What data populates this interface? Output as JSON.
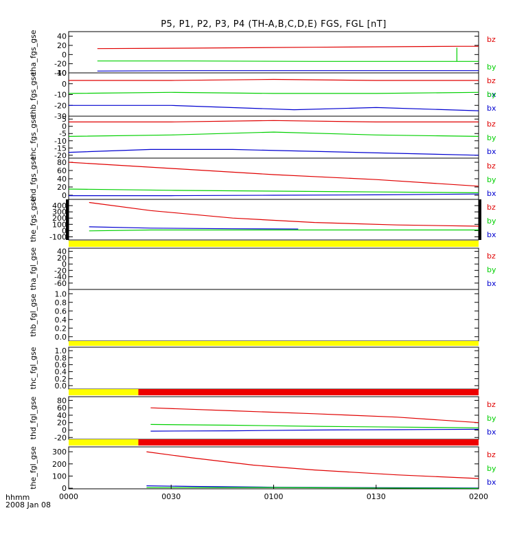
{
  "title": "P5, P1, P2, P3, P4 (TH-A,B,C,D,E) FGS, FGL [nT]",
  "footer": {
    "xunit": "hhmm",
    "date": "2008 Jan 08"
  },
  "colors": {
    "bz": "#e00000",
    "by": "#00d000",
    "bx": "#0000d0",
    "bar_yellow": "#ffff00",
    "bar_red": "#ee0000",
    "spike": "#00d000"
  },
  "chart_data": [
    {
      "type": "line",
      "title": "P5, P1, P2, P3, P4 (TH-A,B,C,D,E) FGS, FGL [nT]",
      "xlabel": "hhmm",
      "x_ticks": [
        "0000",
        "0030",
        "0100",
        "0130",
        "0200"
      ],
      "xlim": [
        "00:00",
        "02:00"
      ],
      "panels": [
        {
          "name": "tha_fgs_gse",
          "ylim": [
            -40,
            50
          ],
          "yticks": [
            "40",
            "20",
            "0",
            "-20",
            "-40"
          ],
          "legend": [
            "bz",
            "by",
            "bx"
          ],
          "series": [
            {
              "name": "bz",
              "t": [
                0.07,
                0.3,
                0.6,
                0.95,
                1
              ],
              "v": [
                13,
                14,
                16,
                18,
                18
              ]
            },
            {
              "name": "by",
              "t": [
                0.07,
                0.3,
                0.6,
                0.95,
                1
              ],
              "v": [
                -14,
                -14,
                -15,
                -15,
                -15
              ]
            },
            {
              "name": "bx",
              "t": [
                0.07,
                0.3,
                0.6,
                0.95,
                1
              ],
              "v": [
                -36,
                -35,
                -35,
                -35,
                -35
              ]
            }
          ],
          "spike": {
            "t": 0.947,
            "from": -15,
            "to": 15
          }
        },
        {
          "name": "thb_fgs_gse",
          "ylim": [
            -30,
            10
          ],
          "yticks": [
            "10",
            "0",
            "-10",
            "-20",
            "-30"
          ],
          "legend": [
            "bz",
            "by",
            "bx"
          ],
          "series": [
            {
              "name": "bz",
              "t": [
                0,
                0.25,
                0.5,
                0.75,
                1
              ],
              "v": [
                3,
                3,
                4,
                3,
                3
              ]
            },
            {
              "name": "by",
              "t": [
                0,
                0.25,
                0.5,
                0.75,
                1
              ],
              "v": [
                -9,
                -8,
                -9,
                -9,
                -8
              ]
            },
            {
              "name": "bx",
              "t": [
                0,
                0.25,
                0.55,
                0.75,
                1
              ],
              "v": [
                -20,
                -20,
                -24,
                -22,
                -25
              ]
            }
          ]
        },
        {
          "name": "thc_fgs_gse",
          "ylim": [
            -22,
            7
          ],
          "yticks": [
            "5",
            "0",
            "-5",
            "-10",
            "-15",
            "-20"
          ],
          "legend": [
            "bz",
            "by",
            "bx"
          ],
          "series": [
            {
              "name": "bz",
              "t": [
                0,
                0.25,
                0.5,
                0.75,
                1
              ],
              "v": [
                3,
                3,
                4,
                3,
                3
              ]
            },
            {
              "name": "by",
              "t": [
                0,
                0.25,
                0.5,
                0.75,
                1
              ],
              "v": [
                -7,
                -6,
                -4,
                -6,
                -7
              ]
            },
            {
              "name": "bx",
              "t": [
                0,
                0.2,
                0.4,
                0.7,
                1
              ],
              "v": [
                -18,
                -16,
                -16,
                -18,
                -20
              ]
            }
          ]
        },
        {
          "name": "thd_fgs_gse",
          "ylim": [
            -10,
            90
          ],
          "yticks": [
            "80",
            "60",
            "40",
            "20",
            "0"
          ],
          "legend": [
            "bz",
            "by",
            "bx"
          ],
          "series": [
            {
              "name": "bz",
              "t": [
                0,
                0.25,
                0.5,
                0.75,
                1
              ],
              "v": [
                80,
                65,
                50,
                38,
                22
              ]
            },
            {
              "name": "by",
              "t": [
                0,
                0.25,
                0.5,
                0.75,
                1
              ],
              "v": [
                15,
                12,
                10,
                8,
                6
              ]
            },
            {
              "name": "bx",
              "t": [
                0,
                0.25,
                0.5,
                0.75,
                1
              ],
              "v": [
                -1,
                -1,
                0,
                1,
                3
              ]
            }
          ]
        },
        {
          "name": "the_fgs_gse",
          "ylim": [
            -150,
            500
          ],
          "yticks": [
            "400",
            "300",
            "200",
            "100",
            "0",
            "-100"
          ],
          "legend": [
            "bz",
            "by",
            "bx"
          ],
          "edge_bars": true,
          "series": [
            {
              "name": "bz",
              "t": [
                0.05,
                0.2,
                0.4,
                0.6,
                0.8,
                1
              ],
              "v": [
                450,
                320,
                200,
                130,
                90,
                70
              ]
            },
            {
              "name": "bx",
              "t": [
                0.05,
                0.2,
                0.4,
                0.56
              ],
              "v": [
                60,
                40,
                30,
                25
              ]
            },
            {
              "name": "by",
              "t": [
                0.05,
                0.2,
                0.56,
                1
              ],
              "v": [
                -5,
                10,
                10,
                10
              ]
            }
          ]
        },
        {
          "name": "tha_fgl_gse",
          "ylim": [
            -80,
            50
          ],
          "yticks": [
            "40",
            "20",
            "0",
            "-20",
            "-40",
            "-60"
          ],
          "legend": [
            "bz",
            "by",
            "bx"
          ],
          "series": []
        },
        {
          "name": "thb_fgl_gse",
          "ylim": [
            -0.1,
            1.1
          ],
          "yticks": [
            "1.0",
            "0.8",
            "0.6",
            "0.4",
            "0.2",
            "0.0"
          ],
          "legend": [],
          "series": []
        },
        {
          "name": "thc_fgl_gse",
          "ylim": [
            -0.1,
            1.1
          ],
          "yticks": [
            "1.0",
            "0.8",
            "0.6",
            "0.4",
            "0.2",
            "0.0"
          ],
          "legend": [],
          "series": []
        },
        {
          "name": "thd_fgl_gse",
          "ylim": [
            -25,
            90
          ],
          "yticks": [
            "80",
            "60",
            "40",
            "20",
            "0",
            "-20"
          ],
          "legend": [
            "bz",
            "by",
            "bx"
          ],
          "series": [
            {
              "name": "bz",
              "t": [
                0.2,
                0.4,
                0.6,
                0.8,
                1
              ],
              "v": [
                60,
                52,
                44,
                35,
                20
              ]
            },
            {
              "name": "by",
              "t": [
                0.2,
                0.4,
                0.6,
                0.8,
                1
              ],
              "v": [
                15,
                13,
                10,
                8,
                6
              ]
            },
            {
              "name": "bx",
              "t": [
                0.2,
                0.4,
                0.6,
                0.8,
                1
              ],
              "v": [
                -3,
                -2,
                0,
                1,
                2
              ]
            }
          ]
        },
        {
          "name": "the_fgl_gse",
          "ylim": [
            -5,
            340
          ],
          "yticks": [
            "300",
            "200",
            "100",
            "0"
          ],
          "legend": [
            "bz",
            "by",
            "bx"
          ],
          "series": [
            {
              "name": "bz",
              "t": [
                0.19,
                0.3,
                0.45,
                0.6,
                0.8,
                1
              ],
              "v": [
                300,
                250,
                190,
                150,
                110,
                80
              ]
            },
            {
              "name": "bx",
              "t": [
                0.19,
                0.3,
                0.5,
                0.75,
                1
              ],
              "v": [
                20,
                15,
                8,
                4,
                2
              ]
            },
            {
              "name": "by",
              "t": [
                0.19,
                0.5,
                0.75,
                1
              ],
              "v": [
                5,
                6,
                2,
                -1
              ]
            }
          ]
        }
      ],
      "status_bars": [
        {
          "after_panel": 5,
          "segments": [
            {
              "from": 0,
              "to": 1,
              "color": "yellow"
            }
          ]
        },
        {
          "after_panel": 7,
          "segments": [
            {
              "from": 0,
              "to": 1,
              "color": "yellow"
            }
          ]
        },
        {
          "after_panel": 8,
          "segments": [
            {
              "from": 0,
              "to": 0.17,
              "color": "yellow"
            },
            {
              "from": 0.17,
              "to": 1,
              "color": "red"
            }
          ]
        },
        {
          "after_panel": 9,
          "segments": [
            {
              "from": 0,
              "to": 0.17,
              "color": "yellow"
            },
            {
              "from": 0.17,
              "to": 1,
              "color": "red"
            }
          ]
        }
      ]
    }
  ]
}
